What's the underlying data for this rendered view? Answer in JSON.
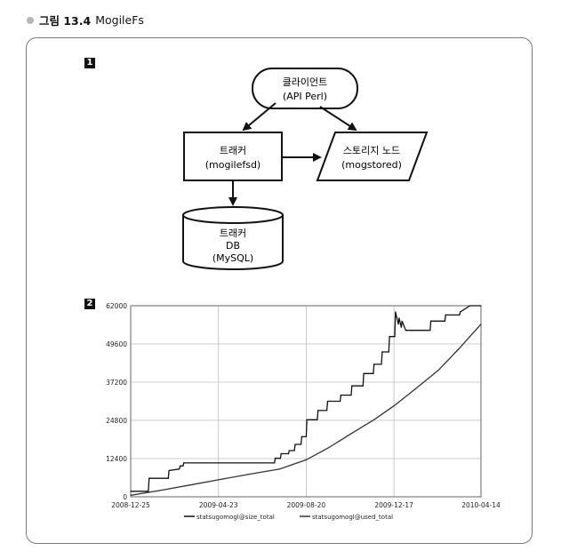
{
  "caption": {
    "label": "그림 13.4",
    "title": "MogileFs"
  },
  "panels": {
    "one": "1",
    "two": "2"
  },
  "diagram": {
    "client": {
      "line1": "클라이언트",
      "line2": "(API Perl)"
    },
    "tracker": {
      "line1": "트래커",
      "line2": "(mogilefsd)"
    },
    "storage": {
      "line1": "스토리지 노드",
      "line2": "(mogstored)"
    },
    "db": {
      "line1": "트래커",
      "line2": "DB",
      "line3": "(MySQL)"
    }
  },
  "chart_data": {
    "type": "line",
    "x_ticks": [
      "2008-12-25",
      "2009-04-23",
      "2009-08-20",
      "2009-12-17",
      "2010-04-14"
    ],
    "y_ticks": [
      "0",
      "12400",
      "24800",
      "37200",
      "49600",
      "62000"
    ],
    "xlim": [
      "2008-12-25",
      "2010-04-14"
    ],
    "ylim": [
      0,
      62000
    ],
    "grid": true,
    "legend_position": "bottom",
    "series": [
      {
        "name": "statsugomogl@size_total",
        "color": "#111111",
        "x": [
          "2008-12-25",
          "2009-01-18",
          "2009-01-19",
          "2009-02-14",
          "2009-02-15",
          "2009-03-01",
          "2009-03-02",
          "2009-03-06",
          "2009-03-07",
          "2009-04-04",
          "2009-07-08",
          "2009-07-09",
          "2009-07-16",
          "2009-07-17",
          "2009-07-27",
          "2009-07-28",
          "2009-08-04",
          "2009-08-05",
          "2009-08-13",
          "2009-08-14",
          "2009-08-20",
          "2009-08-21",
          "2009-09-04",
          "2009-09-05",
          "2009-09-17",
          "2009-09-18",
          "2009-10-05",
          "2009-10-06",
          "2009-10-20",
          "2009-10-21",
          "2009-11-05",
          "2009-11-06",
          "2009-11-19",
          "2009-11-20",
          "2009-11-30",
          "2009-12-01",
          "2009-12-10",
          "2009-12-11",
          "2009-12-18",
          "2009-12-19",
          "2009-12-23",
          "2009-12-24",
          "2009-12-27",
          "2009-12-28",
          "2010-01-02",
          "2010-01-03",
          "2010-01-10",
          "2010-01-20",
          "2010-01-25",
          "2010-02-04",
          "2010-02-05",
          "2010-02-24",
          "2010-02-25",
          "2010-03-16",
          "2010-03-17",
          "2010-03-30",
          "2010-04-14"
        ],
        "values": [
          1800,
          1800,
          6000,
          6000,
          8500,
          9000,
          10000,
          10000,
          11000,
          11000,
          11000,
          12500,
          12500,
          14000,
          14000,
          15000,
          15000,
          17000,
          17000,
          19500,
          19500,
          25000,
          25000,
          28000,
          28000,
          31000,
          31000,
          33000,
          33000,
          36000,
          36000,
          40000,
          40000,
          43000,
          43000,
          47000,
          47000,
          52000,
          52000,
          60000,
          56000,
          58000,
          55000,
          57000,
          54000,
          54000,
          54000,
          54000,
          54000,
          54000,
          57000,
          57000,
          59000,
          59000,
          60000,
          62000,
          62000
        ]
      },
      {
        "name": "statsugomogl@used_total",
        "color": "#333333",
        "x": [
          "2008-12-25",
          "2009-02-01",
          "2009-03-15",
          "2009-04-23",
          "2009-06-01",
          "2009-07-15",
          "2009-08-20",
          "2009-09-20",
          "2009-10-20",
          "2009-11-20",
          "2009-12-17",
          "2010-01-15",
          "2010-02-15",
          "2010-03-15",
          "2010-04-14"
        ],
        "values": [
          500,
          2000,
          3800,
          5500,
          7200,
          9000,
          12000,
          16000,
          20500,
          25000,
          29500,
          35000,
          41000,
          48000,
          56000
        ]
      }
    ]
  }
}
